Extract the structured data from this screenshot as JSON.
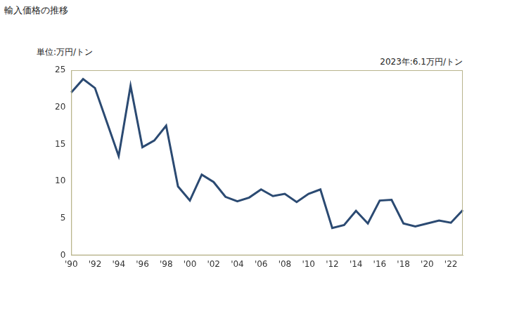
{
  "chart_data": {
    "type": "line",
    "title": "輸入価格の推移",
    "y_label": "単位:万円/トン",
    "annotations": [
      "2023年:6.1万円/トン"
    ],
    "categories": [
      "'90",
      null,
      "'92",
      null,
      "'94",
      null,
      "'96",
      null,
      "'98",
      null,
      "'00",
      null,
      "'02",
      null,
      "'04",
      null,
      "'06",
      null,
      "'08",
      null,
      "'10",
      null,
      "'12",
      null,
      "'14",
      null,
      "'16",
      null,
      "'18",
      null,
      "'20",
      null,
      "'22",
      null
    ],
    "values": [
      22.0,
      23.8,
      22.6,
      18.0,
      13.4,
      22.9,
      14.6,
      15.5,
      17.5,
      9.3,
      7.4,
      10.9,
      9.9,
      7.9,
      7.3,
      7.8,
      8.9,
      8.0,
      8.3,
      7.2,
      8.3,
      8.9,
      3.7,
      4.1,
      6.0,
      4.3,
      7.4,
      7.5,
      4.3,
      3.9,
      4.3,
      4.7,
      4.4,
      6.1
    ],
    "color": "#2b4a72",
    "ylim": [
      0,
      25
    ],
    "yticks": [
      0,
      5,
      10,
      15,
      20,
      25
    ],
    "grid": false
  }
}
